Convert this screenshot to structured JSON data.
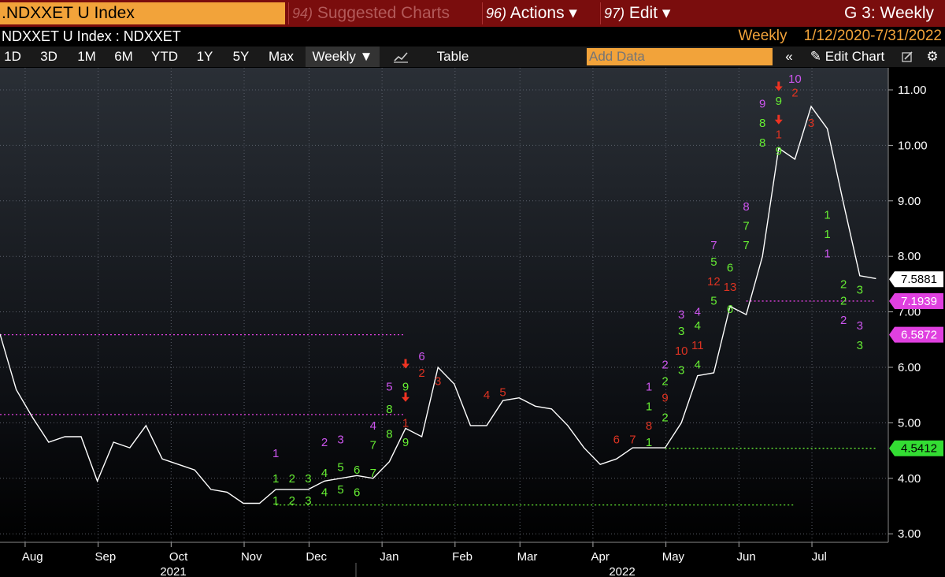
{
  "topbar": {
    "ticker": ".NDXXET U Index",
    "menu": [
      {
        "num": "94)",
        "label": "Suggested Charts",
        "dim": true
      },
      {
        "num": "96)",
        "label": "Actions ▾",
        "dim": false
      },
      {
        "num": "97)",
        "label": "Edit ▾",
        "dim": false
      }
    ],
    "page_title": "G 3: Weekly"
  },
  "secondbar": {
    "security": "NDXXET U Index : NDXXET",
    "periodicity": "Weekly",
    "date_range": "1/12/2020-7/31/2022"
  },
  "toolbar": {
    "ranges": [
      "1D",
      "3D",
      "1M",
      "6M",
      "YTD",
      "1Y",
      "5Y",
      "Max"
    ],
    "frequency": "Weekly ▼",
    "table_label": "Table",
    "add_data_placeholder": "Add Data",
    "edit_chart": "Edit Chart"
  },
  "chart_data": {
    "type": "line",
    "ylim": [
      2.8,
      11.5
    ],
    "y_ticks": [
      "3.00",
      "4.00",
      "5.00",
      "6.00",
      "7.00",
      "8.00",
      "9.00",
      "10.00",
      "11.00"
    ],
    "x_month_labels": [
      "Aug",
      "Sep",
      "Oct",
      "Nov",
      "Dec",
      "Jan",
      "Feb",
      "Mar",
      "Apr",
      "May",
      "Jun",
      "Jul"
    ],
    "x_year_labels": [
      "2021",
      "2022"
    ],
    "series": [
      {
        "values": [
          6.6,
          5.6,
          5.1,
          4.65,
          4.75,
          4.75,
          3.95,
          4.65,
          4.55,
          4.95,
          4.35,
          4.25,
          4.15,
          3.8,
          3.75,
          3.55,
          3.55,
          3.8,
          3.8,
          3.8,
          3.95,
          4.0,
          4.05,
          4.0,
          4.3,
          4.9,
          4.75,
          6.0,
          5.7,
          4.95,
          4.95,
          5.4,
          5.45,
          5.3,
          5.25,
          4.95,
          4.55,
          4.25,
          4.35,
          4.55,
          4.55,
          4.55,
          5.0,
          5.85,
          5.9,
          7.1,
          6.95,
          8.0,
          9.95,
          9.75,
          10.7,
          10.3,
          8.95,
          7.65,
          7.6
        ],
        "color": "#ffffff"
      }
    ],
    "price_labels": [
      {
        "value": 7.5881,
        "text": "7.5881",
        "bg": "#ffffff",
        "fg": "#000000"
      },
      {
        "value": 7.1939,
        "text": "7.1939",
        "bg": "#e040e0",
        "fg": "#ffffff"
      },
      {
        "value": 6.5872,
        "text": "6.5872",
        "bg": "#e040e0",
        "fg": "#ffffff"
      },
      {
        "value": 4.5412,
        "text": "4.5412",
        "bg": "#33dd33",
        "fg": "#000000"
      }
    ],
    "support_resistance": [
      {
        "value": 6.5872,
        "color": "#e040e0",
        "from": 0,
        "to": 25
      },
      {
        "value": 5.15,
        "color": "#e040e0",
        "from": 0,
        "to": 25
      },
      {
        "value": 3.52,
        "color": "#66ee33",
        "from": 17,
        "to": 49
      },
      {
        "value": 4.5412,
        "color": "#66ee33",
        "from": 41,
        "to": 54
      },
      {
        "value": 7.1939,
        "color": "#e040e0",
        "from": 46,
        "to": 54
      }
    ],
    "td_counts": [
      {
        "i": 17,
        "t": "1",
        "c": "#66ee33",
        "v": 3.6
      },
      {
        "i": 17,
        "t": "1",
        "c": "#66ee33",
        "v": 4.0
      },
      {
        "i": 17,
        "t": "1",
        "c": "#cc55ee",
        "v": 4.45
      },
      {
        "i": 18,
        "t": "2",
        "c": "#66ee33",
        "v": 3.6
      },
      {
        "i": 18,
        "t": "2",
        "c": "#66ee33",
        "v": 4.0
      },
      {
        "i": 19,
        "t": "3",
        "c": "#66ee33",
        "v": 3.6
      },
      {
        "i": 19,
        "t": "3",
        "c": "#66ee33",
        "v": 4.0
      },
      {
        "i": 20,
        "t": "4",
        "c": "#66ee33",
        "v": 3.75
      },
      {
        "i": 20,
        "t": "4",
        "c": "#66ee33",
        "v": 4.1
      },
      {
        "i": 20,
        "t": "2",
        "c": "#cc55ee",
        "v": 4.65
      },
      {
        "i": 21,
        "t": "5",
        "c": "#66ee33",
        "v": 3.8
      },
      {
        "i": 21,
        "t": "5",
        "c": "#66ee33",
        "v": 4.2
      },
      {
        "i": 21,
        "t": "3",
        "c": "#cc55ee",
        "v": 4.7
      },
      {
        "i": 22,
        "t": "6",
        "c": "#66ee33",
        "v": 3.75
      },
      {
        "i": 22,
        "t": "6",
        "c": "#66ee33",
        "v": 4.15
      },
      {
        "i": 23,
        "t": "7",
        "c": "#66ee33",
        "v": 4.1
      },
      {
        "i": 23,
        "t": "7",
        "c": "#66ee33",
        "v": 4.6
      },
      {
        "i": 23,
        "t": "4",
        "c": "#cc55ee",
        "v": 4.95
      },
      {
        "i": 24,
        "t": "8",
        "c": "#66ee33",
        "v": 4.8
      },
      {
        "i": 24,
        "t": "8",
        "c": "#66ee33",
        "v": 5.25
      },
      {
        "i": 24,
        "t": "5",
        "c": "#cc55ee",
        "v": 5.65
      },
      {
        "i": 25,
        "t": "9",
        "c": "#66ee33",
        "v": 4.65
      },
      {
        "i": 25,
        "t": "1",
        "c": "#dd3322",
        "v": 5.0
      },
      {
        "i": 25,
        "t": "9",
        "c": "#66ee33",
        "v": 5.65
      },
      {
        "i": 26,
        "t": "2",
        "c": "#dd3322",
        "v": 5.9
      },
      {
        "i": 26,
        "t": "6",
        "c": "#cc55ee",
        "v": 6.2
      },
      {
        "i": 27,
        "t": "3",
        "c": "#dd3322",
        "v": 5.75
      },
      {
        "i": 30,
        "t": "4",
        "c": "#dd3322",
        "v": 5.5
      },
      {
        "i": 31,
        "t": "5",
        "c": "#dd3322",
        "v": 5.55
      },
      {
        "i": 38,
        "t": "6",
        "c": "#dd3322",
        "v": 4.7
      },
      {
        "i": 39,
        "t": "7",
        "c": "#dd3322",
        "v": 4.7
      },
      {
        "i": 40,
        "t": "1",
        "c": "#66ee33",
        "v": 4.65
      },
      {
        "i": 40,
        "t": "8",
        "c": "#dd3322",
        "v": 4.95
      },
      {
        "i": 40,
        "t": "1",
        "c": "#66ee33",
        "v": 5.3
      },
      {
        "i": 40,
        "t": "1",
        "c": "#cc55ee",
        "v": 5.65
      },
      {
        "i": 41,
        "t": "2",
        "c": "#66ee33",
        "v": 5.1
      },
      {
        "i": 41,
        "t": "9",
        "c": "#dd3322",
        "v": 5.45
      },
      {
        "i": 41,
        "t": "2",
        "c": "#66ee33",
        "v": 5.75
      },
      {
        "i": 41,
        "t": "2",
        "c": "#cc55ee",
        "v": 6.05
      },
      {
        "i": 42,
        "t": "3",
        "c": "#66ee33",
        "v": 5.95
      },
      {
        "i": 42,
        "t": "10",
        "c": "#dd3322",
        "v": 6.3
      },
      {
        "i": 42,
        "t": "3",
        "c": "#66ee33",
        "v": 6.65
      },
      {
        "i": 42,
        "t": "3",
        "c": "#cc55ee",
        "v": 6.95
      },
      {
        "i": 43,
        "t": "4",
        "c": "#66ee33",
        "v": 6.05
      },
      {
        "i": 43,
        "t": "11",
        "c": "#dd3322",
        "v": 6.4
      },
      {
        "i": 43,
        "t": "4",
        "c": "#66ee33",
        "v": 6.75
      },
      {
        "i": 43,
        "t": "4",
        "c": "#cc55ee",
        "v": 7.0
      },
      {
        "i": 44,
        "t": "5",
        "c": "#66ee33",
        "v": 7.2
      },
      {
        "i": 44,
        "t": "12",
        "c": "#dd3322",
        "v": 7.55
      },
      {
        "i": 44,
        "t": "5",
        "c": "#66ee33",
        "v": 7.9
      },
      {
        "i": 44,
        "t": "7",
        "c": "#cc55ee",
        "v": 8.2
      },
      {
        "i": 45,
        "t": "6",
        "c": "#66ee33",
        "v": 7.05
      },
      {
        "i": 45,
        "t": "13",
        "c": "#dd3322",
        "v": 7.45
      },
      {
        "i": 45,
        "t": "6",
        "c": "#66ee33",
        "v": 7.8
      },
      {
        "i": 46,
        "t": "7",
        "c": "#66ee33",
        "v": 8.2
      },
      {
        "i": 46,
        "t": "7",
        "c": "#66ee33",
        "v": 8.55
      },
      {
        "i": 46,
        "t": "8",
        "c": "#cc55ee",
        "v": 8.9
      },
      {
        "i": 47,
        "t": "8",
        "c": "#66ee33",
        "v": 10.05
      },
      {
        "i": 47,
        "t": "8",
        "c": "#66ee33",
        "v": 10.4
      },
      {
        "i": 47,
        "t": "9",
        "c": "#cc55ee",
        "v": 10.75
      },
      {
        "i": 48,
        "t": "9",
        "c": "#66ee33",
        "v": 9.9
      },
      {
        "i": 48,
        "t": "1",
        "c": "#dd3322",
        "v": 10.2
      },
      {
        "i": 48,
        "t": "9",
        "c": "#66ee33",
        "v": 10.8
      },
      {
        "i": 49,
        "t": "2",
        "c": "#dd3322",
        "v": 10.95
      },
      {
        "i": 49,
        "t": "10",
        "c": "#cc55ee",
        "v": 11.2
      },
      {
        "i": 50,
        "t": "3",
        "c": "#dd3322",
        "v": 10.4
      },
      {
        "i": 51,
        "t": "1",
        "c": "#66ee33",
        "v": 8.75
      },
      {
        "i": 51,
        "t": "1",
        "c": "#66ee33",
        "v": 8.4
      },
      {
        "i": 51,
        "t": "1",
        "c": "#cc55ee",
        "v": 8.05
      },
      {
        "i": 52,
        "t": "2",
        "c": "#66ee33",
        "v": 7.5
      },
      {
        "i": 52,
        "t": "2",
        "c": "#66ee33",
        "v": 7.2
      },
      {
        "i": 52,
        "t": "2",
        "c": "#cc55ee",
        "v": 6.85
      },
      {
        "i": 53,
        "t": "3",
        "c": "#66ee33",
        "v": 7.4
      },
      {
        "i": 53,
        "t": "3",
        "c": "#cc55ee",
        "v": 6.75
      },
      {
        "i": 53,
        "t": "3",
        "c": "#66ee33",
        "v": 6.4
      }
    ],
    "sell_arrows": [
      {
        "i": 25,
        "v": 6.05
      },
      {
        "i": 25,
        "v": 5.45
      },
      {
        "i": 48,
        "v": 11.05
      },
      {
        "i": 48,
        "v": 10.45
      }
    ]
  }
}
